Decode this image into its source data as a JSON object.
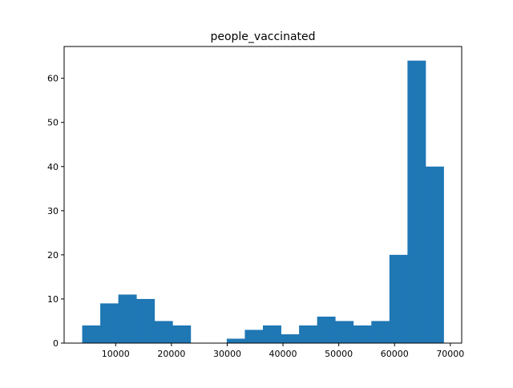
{
  "chart_data": {
    "type": "bar",
    "title": "people_vaccinated",
    "xlabel": "",
    "ylabel": "",
    "xlim": [
      762,
      72038
    ],
    "ylim": [
      0,
      67.2
    ],
    "bin_start": 4000,
    "bin_width": 3240,
    "counts": [
      4,
      9,
      11,
      10,
      5,
      4,
      0,
      0,
      1,
      3,
      4,
      2,
      4,
      6,
      5,
      4,
      5,
      20,
      64,
      40
    ],
    "x_ticks": [
      10000,
      20000,
      30000,
      40000,
      50000,
      60000,
      70000
    ],
    "x_tick_labels": [
      "10000",
      "20000",
      "30000",
      "40000",
      "50000",
      "60000",
      "70000"
    ],
    "y_ticks": [
      0,
      10,
      20,
      30,
      40,
      50,
      60
    ],
    "y_tick_labels": [
      "0",
      "10",
      "20",
      "30",
      "40",
      "50",
      "60"
    ],
    "bar_color": "#1f77b4",
    "grid": false,
    "legend": false
  }
}
